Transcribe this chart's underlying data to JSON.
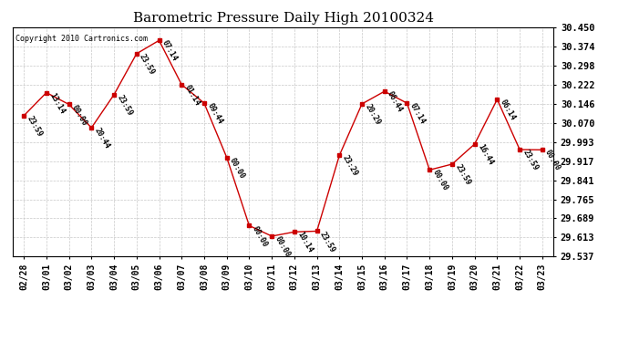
{
  "title": "Barometric Pressure Daily High 20100324",
  "copyright": "Copyright 2010 Cartronics.com",
  "x_labels": [
    "02/28",
    "03/01",
    "03/02",
    "03/03",
    "03/04",
    "03/05",
    "03/06",
    "03/07",
    "03/08",
    "03/09",
    "03/10",
    "03/11",
    "03/12",
    "03/13",
    "03/14",
    "03/15",
    "03/16",
    "03/17",
    "03/18",
    "03/19",
    "03/20",
    "03/21",
    "03/22",
    "03/23"
  ],
  "y_ticks": [
    29.537,
    29.613,
    29.689,
    29.765,
    29.841,
    29.917,
    29.993,
    30.07,
    30.146,
    30.222,
    30.298,
    30.374,
    30.45
  ],
  "points": [
    [
      0,
      30.098,
      "23:59"
    ],
    [
      1,
      30.19,
      "13:14"
    ],
    [
      2,
      30.143,
      "00:00"
    ],
    [
      3,
      30.05,
      "20:44"
    ],
    [
      4,
      30.182,
      "23:59"
    ],
    [
      5,
      30.345,
      "23:59"
    ],
    [
      6,
      30.398,
      "07:14"
    ],
    [
      7,
      30.222,
      "01:14"
    ],
    [
      8,
      30.148,
      "09:44"
    ],
    [
      9,
      29.932,
      "00:00"
    ],
    [
      10,
      29.66,
      "00:00"
    ],
    [
      11,
      29.618,
      "00:00"
    ],
    [
      12,
      29.635,
      "10:14"
    ],
    [
      13,
      29.638,
      "23:59"
    ],
    [
      14,
      29.94,
      "23:29"
    ],
    [
      15,
      30.145,
      "20:29"
    ],
    [
      16,
      30.195,
      "06:44"
    ],
    [
      17,
      30.148,
      "07:14"
    ],
    [
      18,
      29.882,
      "00:00"
    ],
    [
      19,
      29.905,
      "23:59"
    ],
    [
      20,
      29.985,
      "16:44"
    ],
    [
      21,
      30.163,
      "06:14"
    ],
    [
      22,
      29.963,
      "23:59"
    ],
    [
      23,
      29.962,
      "00:00"
    ]
  ],
  "line_color": "#cc0000",
  "marker_color": "#cc0000",
  "bg_color": "#ffffff",
  "plot_bg_color": "#ffffff",
  "grid_color": "#c8c8c8",
  "title_fontsize": 11,
  "tick_fontsize": 7,
  "ytick_fontsize": 7.5
}
